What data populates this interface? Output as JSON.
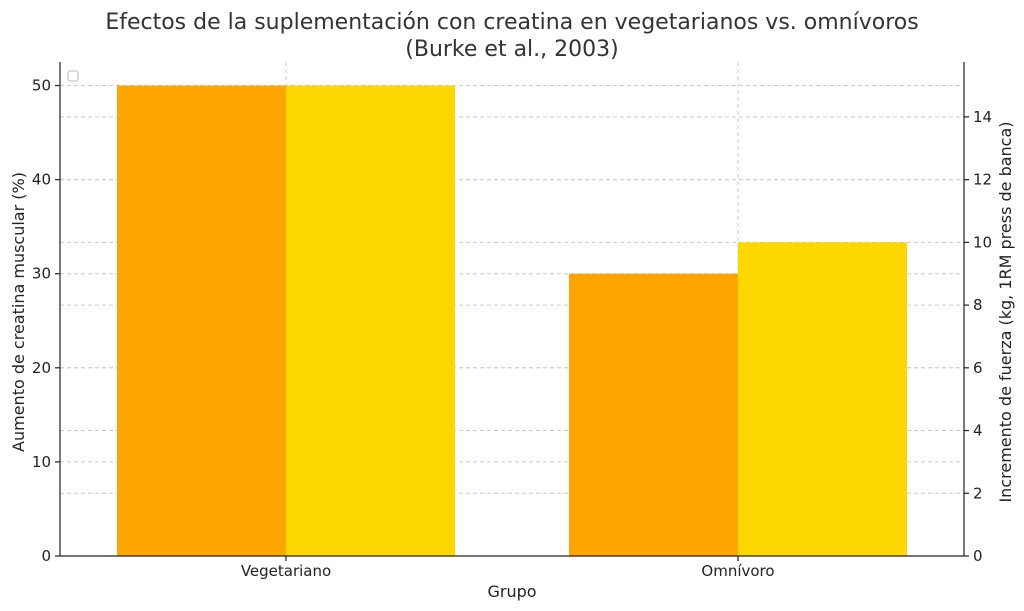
{
  "chart_data": {
    "type": "bar",
    "title": "Efectos de la suplementación con creatina en vegetarianos vs. omnívoros",
    "subtitle": "(Burke et al., 2003)",
    "xlabel": "Grupo",
    "ylabel": "Aumento de creatina muscular (%)",
    "y2label": "Incremento de fuerza (kg, 1RM press de banca)",
    "categories": [
      "Vegetariano",
      "Omnívoro"
    ],
    "series": [
      {
        "axis": "left",
        "color": "#FFA500",
        "values": [
          50,
          30
        ]
      },
      {
        "axis": "right",
        "color": "#FFD700",
        "values": [
          15,
          10
        ]
      }
    ],
    "ylim": [
      0,
      52.5
    ],
    "y2lim": [
      0,
      15.75
    ],
    "yticks": [
      0,
      10,
      20,
      30,
      40,
      50
    ],
    "y2ticks": [
      0,
      2,
      4,
      6,
      8,
      10,
      12,
      14
    ],
    "grid": true,
    "legend": "empty-top-left"
  }
}
